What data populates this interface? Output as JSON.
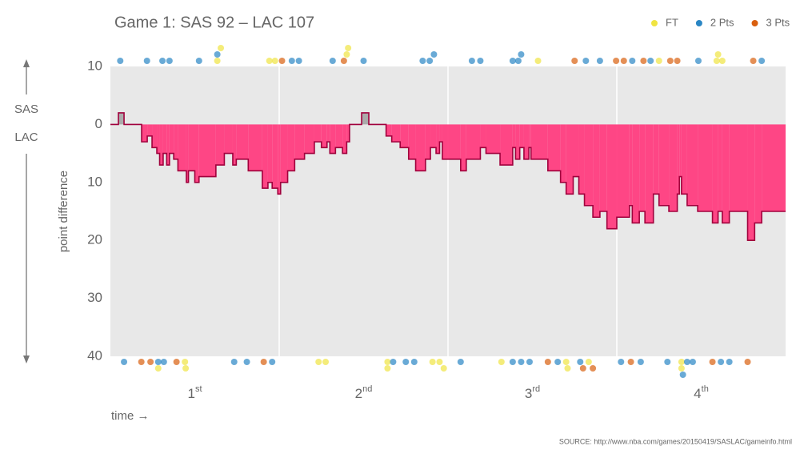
{
  "chart_data": {
    "type": "step-area",
    "title": "Game 1: SAS 92  –  LAC 107",
    "xlabel": "time →",
    "ylabel": "point difference",
    "source": "SOURCE: http://www.nba.com/games/20150419/SASLAC/gameinfo.html",
    "teams": [
      "SAS",
      "LAC"
    ],
    "xlim": [
      0,
      48
    ],
    "xgrid": [
      12,
      24,
      36
    ],
    "ylim": [
      -10,
      40
    ],
    "yticks": [
      {
        "value": -10,
        "label": "10"
      },
      0,
      10,
      20,
      30,
      40
    ],
    "quarters": [
      {
        "label": "1",
        "suffix": "st"
      },
      {
        "label": "2",
        "suffix": "nd"
      },
      {
        "label": "3",
        "suffix": "rd"
      },
      {
        "label": "4",
        "suffix": "th"
      }
    ],
    "lead_colors": {
      "SAS": "#a8a8a8",
      "LAC": "#ff3d7f"
    },
    "x": [
      0,
      0.57,
      0.97,
      2.22,
      2.62,
      2.96,
      3.3,
      3.5,
      3.75,
      4.0,
      4.2,
      4.5,
      4.8,
      5.4,
      5.55,
      6.0,
      6.3,
      7.5,
      8.1,
      8.7,
      8.95,
      9.8,
      10.8,
      11.2,
      11.5,
      11.9,
      12.1,
      12.6,
      13.1,
      13.8,
      14.5,
      15.0,
      15.4,
      15.6,
      16.0,
      16.5,
      16.8,
      17.0,
      17.86,
      18.37,
      19.6,
      20.0,
      20.6,
      21.2,
      21.7,
      22.4,
      22.75,
      23.15,
      23.4,
      23.6,
      24.9,
      25.3,
      26.3,
      26.7,
      27.7,
      28.6,
      28.8,
      29.1,
      29.4,
      29.75,
      29.9,
      31.1,
      32.0,
      32.4,
      32.9,
      33.3,
      33.7,
      34.3,
      34.8,
      35.3,
      36.0,
      36.9,
      37.1,
      37.6,
      38.0,
      38.6,
      39.0,
      39.7,
      40.3,
      40.45,
      40.6,
      41.0,
      41.75,
      42.8,
      43.2,
      43.5,
      44.0,
      45.3,
      45.8,
      46.3
    ],
    "values": [
      0,
      -2,
      0,
      3,
      2,
      4,
      5,
      7,
      5,
      7,
      5,
      6,
      8,
      10,
      8,
      10,
      9,
      7,
      5,
      7,
      6,
      8,
      11,
      10,
      11,
      12,
      10,
      8,
      6,
      5,
      3,
      4,
      3,
      5,
      4,
      5,
      3,
      0,
      -2,
      0,
      2,
      3,
      4,
      6,
      8,
      6,
      4,
      5,
      3,
      6,
      8,
      6,
      4,
      5,
      7,
      4,
      6,
      4,
      6,
      4,
      6,
      8,
      10,
      12,
      9,
      12,
      14,
      16,
      15,
      18,
      16,
      14,
      17,
      15,
      17,
      12,
      14,
      15,
      12,
      9,
      12,
      14,
      15,
      17,
      15,
      17,
      15,
      20,
      17,
      15
    ],
    "legend": [
      {
        "name": "FT",
        "points": 1,
        "color": "#f0e442"
      },
      {
        "name": "2 Pts",
        "points": 2,
        "color": "#2a86c4"
      },
      {
        "name": "3 Pts",
        "points": 3,
        "color": "#d95f0e"
      }
    ],
    "events": [
      {
        "team": "SAS",
        "x": [
          0.7,
          2.6,
          3.7,
          4.2,
          6.3,
          7.6,
          7.6,
          7.85,
          11.3,
          11.7,
          12.2,
          12.9,
          13.4,
          15.8,
          16.6,
          16.8,
          16.9,
          18.0,
          22.2,
          22.7,
          23.0,
          25.7,
          26.3,
          28.6,
          29.0,
          29.2,
          30.4,
          33.0,
          33.8,
          34.8,
          35.95,
          36.5,
          37.1,
          37.9,
          38.4,
          39.0,
          39.8,
          40.3,
          41.8,
          43.1,
          43.2,
          43.5,
          45.7,
          46.3
        ],
        "points": [
          2,
          2,
          2,
          2,
          2,
          1,
          2,
          1,
          1,
          1,
          3,
          2,
          2,
          2,
          3,
          1,
          1,
          2,
          2,
          2,
          2,
          2,
          2,
          2,
          2,
          2,
          1,
          3,
          2,
          2,
          3,
          3,
          2,
          3,
          2,
          1,
          3,
          3,
          2,
          1,
          1,
          1,
          3,
          2
        ]
      },
      {
        "team": "LAC",
        "x": [
          0.97,
          2.2,
          2.85,
          3.4,
          3.4,
          3.8,
          4.7,
          5.3,
          5.35,
          8.8,
          9.7,
          10.9,
          11.5,
          14.8,
          15.3,
          19.7,
          19.7,
          20.1,
          21.0,
          21.6,
          22.9,
          23.4,
          23.7,
          24.9,
          27.8,
          28.6,
          29.2,
          29.8,
          31.1,
          31.8,
          32.4,
          32.5,
          33.4,
          33.6,
          34.0,
          34.3,
          36.3,
          37.0,
          37.7,
          39.6,
          40.6,
          40.6,
          40.7,
          41.0,
          41.4,
          42.8,
          43.4,
          44.0,
          45.3
        ],
        "points": [
          2,
          3,
          3,
          2,
          1,
          2,
          3,
          1,
          1,
          2,
          2,
          3,
          2,
          1,
          1,
          1,
          1,
          2,
          2,
          2,
          1,
          1,
          1,
          2,
          1,
          2,
          2,
          2,
          3,
          2,
          1,
          1,
          2,
          3,
          1,
          3,
          2,
          3,
          2,
          2,
          1,
          1,
          2,
          2,
          2,
          3,
          2,
          2,
          3
        ]
      }
    ]
  }
}
